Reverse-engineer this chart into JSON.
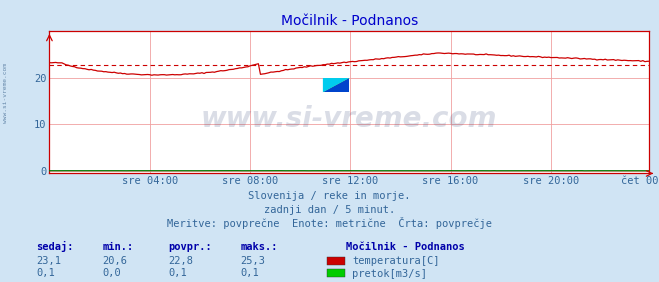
{
  "title": "Močilnik - Podnanos",
  "bg_color": "#d0e4f4",
  "plot_bg_color": "#ffffff",
  "x_labels": [
    "sre 04:00",
    "sre 08:00",
    "sre 12:00",
    "sre 16:00",
    "sre 20:00",
    "čet 00:00"
  ],
  "y_ticks": [
    0,
    10,
    20
  ],
  "ylim": [
    -0.5,
    30
  ],
  "temp_color": "#cc0000",
  "flow_color": "#007700",
  "watermark": "www.si-vreme.com",
  "subtitle1": "Slovenija / reke in morje.",
  "subtitle2": "zadnji dan / 5 minut.",
  "subtitle3": "Meritve: povprečne  Enote: metrične  Črta: povprečje",
  "legend_title": "Močilnik - Podnanos",
  "legend_items": [
    {
      "label": "temperatura[C]",
      "color": "#cc0000"
    },
    {
      "label": "pretok[m3/s]",
      "color": "#00cc00"
    }
  ],
  "stats_headers": [
    "sedaj:",
    "min.:",
    "povpr.:",
    "maks.:"
  ],
  "stats_temp": [
    "23,1",
    "20,6",
    "22,8",
    "25,3"
  ],
  "stats_flow": [
    "0,1",
    "0,0",
    "0,1",
    "0,1"
  ],
  "temp_avg": 22.8,
  "grid_color": "#f0a0a0",
  "grid_color_v": "#f0a0a0",
  "side_label": "www.si-vreme.com"
}
